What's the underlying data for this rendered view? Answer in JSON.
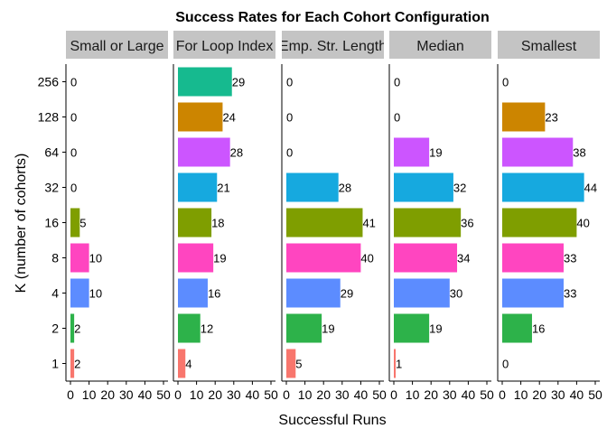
{
  "chart_data": {
    "type": "bar",
    "orientation": "horizontal",
    "title": "Success Rates for Each Cohort Configuration",
    "xlabel": "Successful Runs",
    "ylabel": "K (number of cohorts)",
    "categories": [
      "1",
      "2",
      "4",
      "8",
      "16",
      "32",
      "64",
      "128",
      "256"
    ],
    "xlim": [
      0,
      50
    ],
    "xticks": [
      "0",
      "10",
      "20",
      "30",
      "40",
      "50"
    ],
    "colors": [
      "#F8766D",
      "#2DB24A",
      "#5C8CFF",
      "#FF45C0",
      "#7F9E00",
      "#16A9DF",
      "#CC55FF",
      "#CC8500",
      "#16BA8F"
    ],
    "facets": [
      {
        "name": "Small or Large",
        "values": [
          2,
          2,
          10,
          10,
          5,
          0,
          0,
          0,
          0
        ]
      },
      {
        "name": "For Loop Index",
        "values": [
          4,
          12,
          16,
          19,
          18,
          21,
          28,
          24,
          29
        ]
      },
      {
        "name": "Emp. Str. Length",
        "values": [
          5,
          19,
          29,
          40,
          41,
          28,
          0,
          0,
          0
        ]
      },
      {
        "name": "Median",
        "values": [
          1,
          19,
          30,
          34,
          36,
          32,
          19,
          0,
          0
        ]
      },
      {
        "name": "Smallest",
        "values": [
          0,
          16,
          33,
          33,
          40,
          44,
          38,
          23,
          0
        ]
      }
    ]
  }
}
